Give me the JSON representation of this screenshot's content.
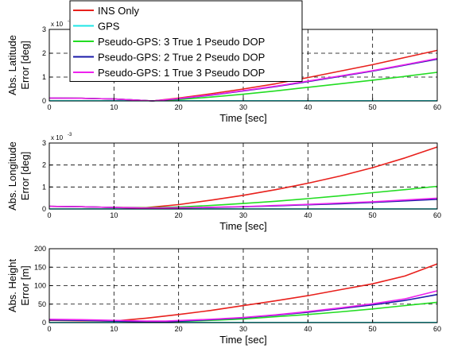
{
  "legend": {
    "entries": [
      {
        "name": "INS Only",
        "color": "#e8201c"
      },
      {
        "name": "GPS",
        "color": "#1ee6e6"
      },
      {
        "name": "Pseudo-GPS: 3 True 1 Pseudo DOP",
        "color": "#22dd22"
      },
      {
        "name": "Pseudo-GPS: 2 True 2 Pseudo DOP",
        "color": "#1a1aa8"
      },
      {
        "name": "Pseudo-GPS: 1 True 3 Pseudo DOP",
        "color": "#ee22ee"
      }
    ]
  },
  "chart_data": [
    {
      "type": "line",
      "ylabel_line1": "Abs. Latitude",
      "ylabel_line2": "Error [deg]",
      "xlabel": "Time [sec]",
      "exponent": "x 10",
      "exponent_power": "-3",
      "xlim": [
        0,
        60
      ],
      "ylim": [
        0,
        3
      ],
      "xticks": [
        "0",
        "10",
        "20",
        "30",
        "40",
        "50",
        "60"
      ],
      "yticks": [
        "0",
        "1",
        "2",
        "3"
      ],
      "grid": true,
      "series": [
        {
          "name": "INS Only",
          "x": [
            0,
            5,
            10,
            16,
            20,
            25,
            30,
            35,
            40,
            45,
            50,
            55,
            60
          ],
          "y": [
            0.12,
            0.11,
            0.08,
            0.0,
            0.12,
            0.3,
            0.5,
            0.72,
            0.98,
            1.25,
            1.52,
            1.82,
            2.12
          ]
        },
        {
          "name": "GPS",
          "x": [
            0,
            60
          ],
          "y": [
            0.005,
            0.005
          ]
        },
        {
          "name": "Pseudo-GPS: 3 True 1 Pseudo DOP",
          "x": [
            0,
            5,
            10,
            16,
            20,
            25,
            30,
            35,
            40,
            45,
            50,
            55,
            60
          ],
          "y": [
            0.12,
            0.11,
            0.08,
            0.0,
            0.06,
            0.16,
            0.28,
            0.42,
            0.57,
            0.72,
            0.87,
            1.03,
            1.2
          ]
        },
        {
          "name": "Pseudo-GPS: 2 True 2 Pseudo DOP",
          "x": [
            0,
            5,
            10,
            16,
            20,
            25,
            30,
            35,
            40,
            45,
            50,
            55,
            60
          ],
          "y": [
            0.12,
            0.11,
            0.08,
            0.0,
            0.09,
            0.24,
            0.42,
            0.6,
            0.81,
            1.03,
            1.25,
            1.5,
            1.75
          ]
        },
        {
          "name": "Pseudo-GPS: 1 True 3 Pseudo DOP",
          "x": [
            0,
            5,
            10,
            16,
            20,
            25,
            30,
            35,
            40,
            45,
            50,
            55,
            60
          ],
          "y": [
            0.12,
            0.11,
            0.08,
            0.0,
            0.1,
            0.25,
            0.43,
            0.62,
            0.83,
            1.05,
            1.27,
            1.52,
            1.78
          ]
        }
      ]
    },
    {
      "type": "line",
      "ylabel_line1": "Abs. Longitude",
      "ylabel_line2": "Error [deg]",
      "xlabel": "Time [sec]",
      "exponent": "x 10",
      "exponent_power": "-3",
      "xlim": [
        0,
        60
      ],
      "ylim": [
        0,
        3
      ],
      "xticks": [
        "0",
        "10",
        "20",
        "30",
        "40",
        "50",
        "60"
      ],
      "yticks": [
        "0",
        "1",
        "2",
        "3"
      ],
      "grid": true,
      "series": [
        {
          "name": "INS Only",
          "x": [
            0,
            5,
            10,
            15,
            20,
            25,
            30,
            35,
            40,
            45,
            50,
            55,
            60
          ],
          "y": [
            0.12,
            0.1,
            0.07,
            0.06,
            0.2,
            0.4,
            0.62,
            0.88,
            1.17,
            1.5,
            1.88,
            2.32,
            2.82
          ]
        },
        {
          "name": "GPS",
          "x": [
            0,
            60
          ],
          "y": [
            0.005,
            0.005
          ]
        },
        {
          "name": "Pseudo-GPS: 3 True 1 Pseudo DOP",
          "x": [
            0,
            5,
            10,
            15,
            20,
            25,
            30,
            35,
            40,
            45,
            50,
            55,
            60
          ],
          "y": [
            0.12,
            0.1,
            0.07,
            0.05,
            0.09,
            0.16,
            0.25,
            0.35,
            0.47,
            0.6,
            0.74,
            0.88,
            1.03
          ]
        },
        {
          "name": "Pseudo-GPS: 2 True 2 Pseudo DOP",
          "x": [
            0,
            5,
            10,
            15,
            20,
            25,
            30,
            35,
            40,
            45,
            50,
            55,
            60
          ],
          "y": [
            0.12,
            0.1,
            0.07,
            0.04,
            0.05,
            0.07,
            0.1,
            0.14,
            0.19,
            0.24,
            0.3,
            0.37,
            0.44
          ]
        },
        {
          "name": "Pseudo-GPS: 1 True 3 Pseudo DOP",
          "x": [
            0,
            5,
            10,
            15,
            20,
            25,
            30,
            35,
            40,
            45,
            50,
            55,
            60
          ],
          "y": [
            0.12,
            0.1,
            0.07,
            0.04,
            0.05,
            0.08,
            0.11,
            0.16,
            0.21,
            0.27,
            0.33,
            0.41,
            0.49
          ]
        }
      ]
    },
    {
      "type": "line",
      "ylabel_line1": "Abs. Height",
      "ylabel_line2": "Error [m]",
      "xlabel": "Time [sec]",
      "xlim": [
        0,
        60
      ],
      "ylim": [
        0,
        200
      ],
      "xticks": [
        "0",
        "10",
        "20",
        "30",
        "40",
        "50",
        "60"
      ],
      "yticks": [
        "0",
        "50",
        "100",
        "150",
        "200"
      ],
      "grid": true,
      "series": [
        {
          "name": "INS Only",
          "x": [
            0,
            5,
            10,
            15,
            20,
            25,
            30,
            35,
            40,
            45,
            50,
            55,
            60
          ],
          "y": [
            6,
            5,
            4,
            12,
            22,
            33,
            46,
            59,
            73,
            89,
            105,
            126,
            159
          ]
        },
        {
          "name": "GPS",
          "x": [
            0,
            60
          ],
          "y": [
            0.5,
            0.5
          ]
        },
        {
          "name": "Pseudo-GPS: 3 True 1 Pseudo DOP",
          "x": [
            0,
            5,
            10,
            15,
            18,
            25,
            30,
            35,
            40,
            45,
            50,
            55,
            60
          ],
          "y": [
            7,
            6,
            4,
            2,
            2,
            6,
            10,
            16,
            22,
            29,
            37,
            46,
            55
          ]
        },
        {
          "name": "Pseudo-GPS: 2 True 2 Pseudo DOP",
          "x": [
            0,
            5,
            10,
            15,
            18,
            25,
            30,
            35,
            40,
            45,
            50,
            55,
            60
          ],
          "y": [
            7,
            6,
            4,
            2,
            2,
            8,
            13,
            20,
            28,
            38,
            48,
            60,
            76
          ]
        },
        {
          "name": "Pseudo-GPS: 1 True 3 Pseudo DOP",
          "x": [
            0,
            5,
            10,
            15,
            18,
            25,
            30,
            35,
            40,
            45,
            50,
            55,
            60
          ],
          "y": [
            9,
            8,
            6,
            4,
            4,
            9,
            14,
            21,
            30,
            40,
            51,
            64,
            86
          ]
        }
      ]
    }
  ]
}
